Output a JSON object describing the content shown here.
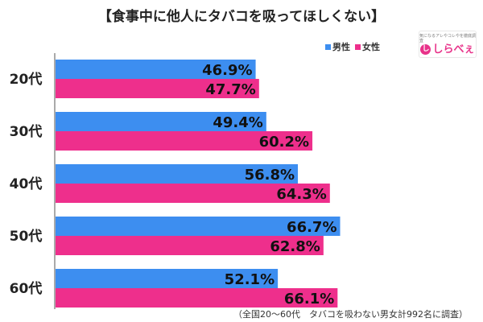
{
  "title": "【食事中に他人にタバコを吸ってほしくない】",
  "legend": [
    {
      "label": "男性",
      "color": "#3d8ef0"
    },
    {
      "label": "女性",
      "color": "#ee2f8c"
    }
  ],
  "logo": {
    "tagline": "気になるアレやコレやを徹底調査",
    "text": "しらべぇ",
    "mark": "し"
  },
  "footnote": "（全国20〜60代　タバコを吸わない男女計992名に調査）",
  "chart_data": {
    "type": "bar",
    "orientation": "horizontal",
    "categories": [
      "20代",
      "30代",
      "40代",
      "50代",
      "60代"
    ],
    "series": [
      {
        "name": "男性",
        "color": "#3d8ef0",
        "values": [
          46.9,
          49.4,
          56.8,
          66.7,
          52.1
        ],
        "labels": [
          "46.9%",
          "49.4%",
          "56.8%",
          "66.7%",
          "52.1%"
        ]
      },
      {
        "name": "女性",
        "color": "#ee2f8c",
        "values": [
          47.7,
          60.2,
          64.3,
          62.8,
          66.1
        ],
        "labels": [
          "47.7%",
          "60.2%",
          "64.3%",
          "62.8%",
          "66.1%"
        ]
      }
    ],
    "xlim": [
      0,
      100
    ],
    "grid": false,
    "legend_position": "top-right"
  }
}
